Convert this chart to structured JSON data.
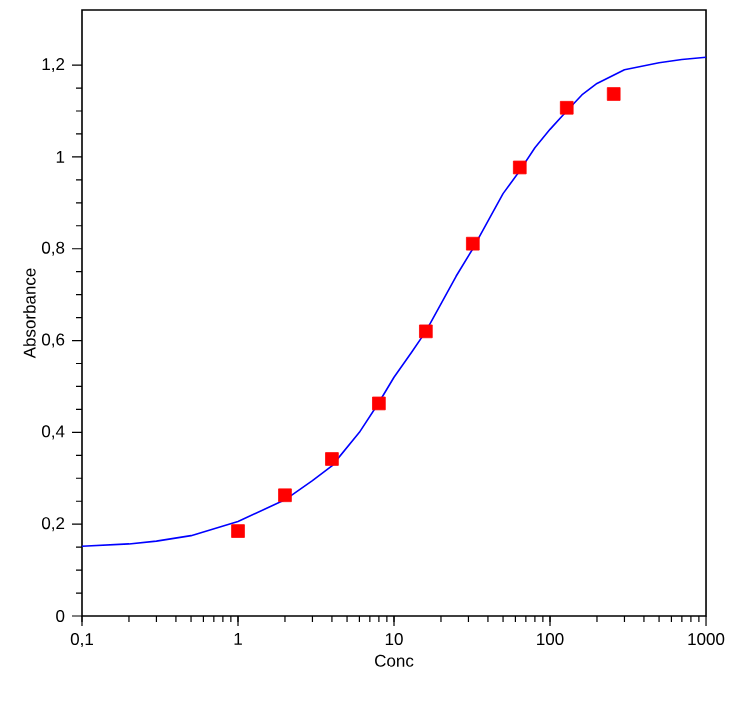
{
  "chart_data": {
    "type": "scatter",
    "xlabel": "Conc",
    "ylabel": "Absorbance",
    "log": "x",
    "grid": false,
    "xlim": [
      0.1,
      1000
    ],
    "xticks": [
      {
        "value": 0.1,
        "label": "0,1"
      },
      1,
      10,
      100,
      1000
    ],
    "ylim": [
      0,
      1.32
    ],
    "yticks": [
      0,
      {
        "value": 0.2,
        "label": "0,2"
      },
      {
        "value": 0.4,
        "label": "0,4"
      },
      {
        "value": 0.6,
        "label": "0,6"
      },
      {
        "value": 0.8,
        "label": "0,8"
      },
      1,
      {
        "value": 1.2,
        "label": "1,2"
      }
    ],
    "x": [
      1,
      2,
      4,
      8,
      16,
      32,
      64,
      128,
      256
    ],
    "series": [
      {
        "color": "#ff0000",
        "marker": "square",
        "values": [
          0.185,
          0.263,
          0.342,
          0.463,
          0.62,
          0.811,
          0.977,
          1.107,
          1.137
        ]
      },
      {
        "type": "line",
        "color": "#0000ff",
        "marker": "none",
        "line_style": "solid",
        "x": [
          0.1,
          0.2,
          0.3,
          0.5,
          1,
          2,
          3,
          4,
          6,
          8,
          10,
          13,
          16,
          20,
          25,
          32,
          40,
          50,
          64,
          80,
          100,
          128,
          160,
          200,
          300,
          500,
          700,
          1000
        ],
        "values": [
          0.152,
          0.157,
          0.163,
          0.175,
          0.206,
          0.253,
          0.295,
          0.327,
          0.4,
          0.465,
          0.52,
          0.575,
          0.62,
          0.68,
          0.74,
          0.8,
          0.86,
          0.92,
          0.97,
          1.02,
          1.06,
          1.1,
          1.135,
          1.16,
          1.19,
          1.205,
          1.212,
          1.217
        ]
      }
    ]
  }
}
